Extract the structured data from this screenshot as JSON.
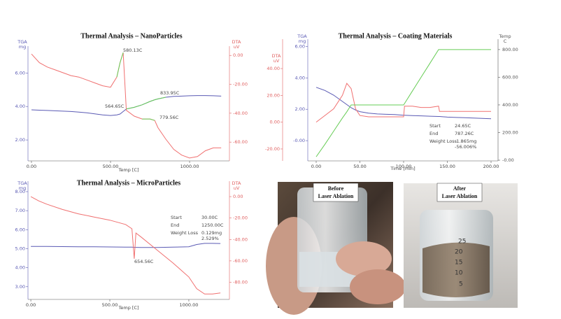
{
  "chart_data": [
    {
      "type": "line",
      "title": "Thermal Analysis – NanoParticles",
      "x_label": "Temp [C]",
      "y_label": [
        "TGA",
        "mg"
      ],
      "y2_label": [
        "DTA",
        "uV"
      ],
      "x": [
        0,
        50,
        100,
        150,
        200,
        250,
        300,
        350,
        400,
        450,
        500,
        540,
        560,
        580,
        600,
        650,
        700,
        750,
        779.56,
        800,
        850,
        900,
        950,
        1000,
        1050,
        1100,
        1150,
        1200
      ],
      "series": [
        {
          "axis": "y",
          "color": "#5a5ab4",
          "values": [
            3.8,
            3.78,
            3.76,
            3.74,
            3.72,
            3.7,
            3.66,
            3.62,
            3.56,
            3.5,
            3.46,
            3.5,
            3.55,
            3.7,
            3.85,
            3.95,
            4.1,
            4.3,
            4.4,
            4.45,
            4.55,
            4.6,
            4.62,
            4.64,
            4.65,
            4.65,
            4.64,
            4.62
          ]
        },
        {
          "axis": "y2",
          "color": "#f07070",
          "values": [
            1,
            -5,
            -8,
            -10,
            -12,
            -14,
            -15,
            -17,
            -19,
            -21,
            -22,
            -15,
            -5,
            2,
            -38,
            -42,
            -44,
            -44,
            -45,
            -50,
            -58,
            -65,
            -69,
            -71,
            -70,
            -66,
            -64,
            -64
          ]
        },
        {
          "axis": "y2",
          "color": "#66cc55",
          "values": [
            null,
            null,
            null,
            null,
            null,
            null,
            null,
            null,
            null,
            null,
            null,
            -15,
            -5,
            2,
            null,
            null,
            -44,
            -44,
            -45,
            null,
            null,
            null,
            null,
            null,
            null,
            null,
            null,
            null
          ]
        },
        {
          "axis": "y",
          "color": "#66cc55",
          "values": [
            null,
            null,
            null,
            null,
            null,
            null,
            null,
            null,
            null,
            null,
            null,
            null,
            null,
            null,
            3.85,
            3.95,
            4.1,
            4.3,
            4.4,
            4.45,
            4.55,
            null,
            null,
            null,
            null,
            null,
            null,
            null
          ]
        }
      ],
      "xlim": [
        -22,
        1252
      ],
      "xticks": [
        {
          "value": 0,
          "label": "0.00"
        },
        {
          "value": 500,
          "label": "500.00"
        },
        {
          "value": 1000,
          "label": "1000.00"
        }
      ],
      "ylim": [
        0.75,
        7.35
      ],
      "yticks": [
        {
          "value": 2,
          "label": "2.00"
        },
        {
          "value": 4,
          "label": "4.00"
        },
        {
          "value": 6,
          "label": "6.00"
        }
      ],
      "y2lim": [
        -73,
        3.5
      ],
      "y2ticks": [
        {
          "value": 0,
          "label": "0.00"
        },
        {
          "value": -20,
          "label": "-20.00"
        },
        {
          "value": -40,
          "label": "-40.00"
        },
        {
          "value": -60,
          "label": "-60.00"
        }
      ],
      "annotations": [
        "580.13C",
        "564.65C",
        "833.95C",
        "779.56C"
      ]
    },
    {
      "type": "line",
      "title": "Thermal Analysis – Coating Materials",
      "x_label": "Time [min]",
      "y_label": [
        "TGA",
        "mg"
      ],
      "y2_label": [
        "DTA",
        "uV"
      ],
      "y3_label": [
        "Temp",
        "C"
      ],
      "x": [
        0,
        10,
        20,
        30,
        35,
        40,
        45,
        50,
        60,
        70,
        80,
        90,
        100,
        101,
        110,
        120,
        130,
        140,
        141,
        150,
        160,
        170,
        180,
        190,
        200
      ],
      "series": [
        {
          "axis": "y",
          "color": "#5a5ab4",
          "values": [
            3.4,
            3.2,
            2.9,
            2.5,
            2.3,
            2.1,
            1.95,
            1.85,
            1.75,
            1.7,
            1.68,
            1.66,
            1.62,
            1.62,
            1.6,
            1.58,
            1.56,
            1.54,
            1.54,
            1.5,
            1.48,
            1.46,
            1.44,
            1.42,
            1.4
          ]
        },
        {
          "axis": "y2",
          "color": "#f07070",
          "values": [
            0,
            5,
            10,
            20,
            29,
            25,
            10,
            5,
            4,
            4,
            4,
            4,
            4,
            12,
            12,
            11,
            11,
            12,
            8,
            8,
            8,
            8,
            8,
            8,
            8
          ]
        },
        {
          "axis": "y3",
          "color": "#66cc55",
          "values": [
            25,
            115,
            210,
            305,
            350,
            400,
            400,
            400,
            400,
            400,
            400,
            400,
            400,
            410,
            500,
            600,
            700,
            800,
            800,
            800,
            800,
            800,
            800,
            800,
            800
          ]
        }
      ],
      "xlim": [
        -9.6,
        208
      ],
      "xticks": [
        {
          "value": 0,
          "label": "0.00"
        },
        {
          "value": 50,
          "label": "50.00"
        },
        {
          "value": 100,
          "label": "100.00"
        },
        {
          "value": 150,
          "label": "150.00"
        },
        {
          "value": 200,
          "label": "200.00"
        }
      ],
      "ylim": [
        -1.29,
        6.2
      ],
      "yticks": [
        {
          "value": 0,
          "label": "-0.00"
        },
        {
          "value": 2,
          "label": "2.00"
        },
        {
          "value": 4,
          "label": "4.00"
        },
        {
          "value": 6,
          "label": "6.00"
        }
      ],
      "y2lim": [
        -28.9,
        58.8
      ],
      "y2ticks": [
        {
          "value": -20,
          "label": "-20.00"
        },
        {
          "value": 0,
          "label": "0.00"
        },
        {
          "value": 20,
          "label": "20.00"
        },
        {
          "value": 40,
          "label": "40.00"
        }
      ],
      "y3lim": [
        -5,
        845
      ],
      "y3ticks": [
        {
          "value": 0,
          "label": "-0.00"
        },
        {
          "value": 200,
          "label": "200.00"
        },
        {
          "value": 400,
          "label": "400.00"
        },
        {
          "value": 600,
          "label": "600.00"
        },
        {
          "value": 800,
          "label": "800.00"
        }
      ],
      "stats": [
        [
          "Start",
          "24.65C"
        ],
        [
          "End",
          "787.26C"
        ],
        [
          "Weight Loss",
          "-1.865mg",
          "-56.006%"
        ]
      ]
    },
    {
      "type": "line",
      "title": "Thermal Analysis – MicroParticles",
      "x_label": "Temp [C]",
      "y_label": [
        "TGA",
        "mg"
      ],
      "y2_label": [
        "DTA",
        "uV"
      ],
      "x": [
        0,
        50,
        100,
        200,
        300,
        400,
        500,
        600,
        640,
        654.56,
        665,
        700,
        800,
        900,
        1000,
        1050,
        1100,
        1150,
        1200
      ],
      "series": [
        {
          "axis": "y",
          "color": "#5a5ab4",
          "values": [
            5.12,
            5.12,
            5.12,
            5.11,
            5.1,
            5.1,
            5.09,
            5.08,
            5.08,
            5.07,
            5.07,
            5.06,
            5.06,
            5.08,
            5.1,
            5.22,
            5.28,
            5.28,
            5.27
          ]
        },
        {
          "axis": "y2",
          "color": "#f07070",
          "values": [
            0,
            -4,
            -7,
            -12,
            -16,
            -19,
            -22,
            -26,
            -30,
            -58,
            -34,
            -38,
            -50,
            -62,
            -75,
            -86,
            -91,
            -91,
            -90
          ]
        }
      ],
      "xlim": [
        -18,
        1257
      ],
      "xticks": [
        {
          "value": 0,
          "label": "0.00"
        },
        {
          "value": 500,
          "label": "500.00"
        },
        {
          "value": 1000,
          "label": "1000.00"
        }
      ],
      "ylim": [
        2.33,
        8.33
      ],
      "yticks": [
        {
          "value": 3,
          "label": "3.00"
        },
        {
          "value": 4,
          "label": "4.00"
        },
        {
          "value": 5,
          "label": "5.00"
        },
        {
          "value": 6,
          "label": "6.00"
        },
        {
          "value": 7,
          "label": "7.00"
        },
        {
          "value": 8,
          "label": "8.00"
        }
      ],
      "y2lim": [
        -96,
        10.5
      ],
      "y2ticks": [
        {
          "value": 0,
          "label": "0.00"
        },
        {
          "value": -20,
          "label": "-20.00"
        },
        {
          "value": -40,
          "label": "-40.00"
        },
        {
          "value": -60,
          "label": "-60.00"
        },
        {
          "value": -80,
          "label": "-80.00"
        }
      ],
      "annotations": [
        "654.56C"
      ],
      "stats": [
        [
          "Start",
          "30.00C"
        ],
        [
          "End",
          "1250.00C"
        ],
        [
          "Weight Loss",
          "0.129mg",
          "2.529%"
        ]
      ]
    }
  ],
  "photos": [
    {
      "label": [
        "Before",
        "Laser Ablation"
      ]
    },
    {
      "label": [
        "After",
        "Laser Ablation"
      ],
      "marks": [
        "25",
        "20",
        "15",
        "10",
        "5"
      ]
    }
  ]
}
